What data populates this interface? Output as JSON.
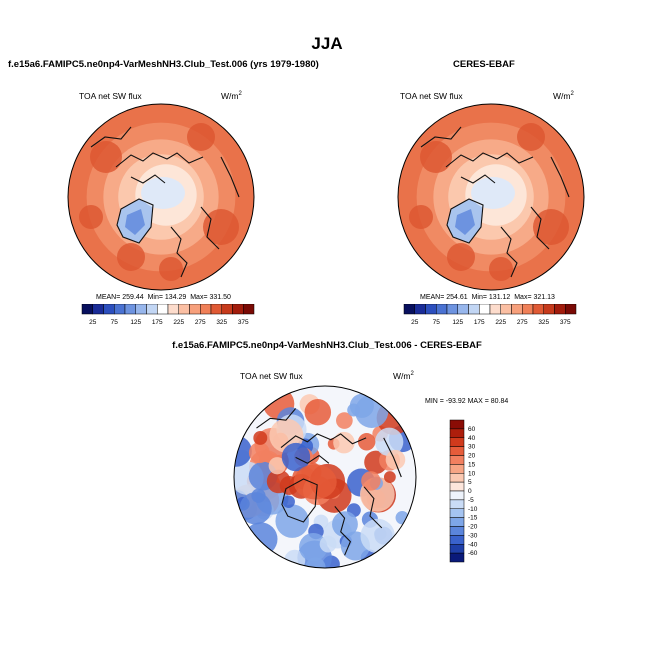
{
  "season_title": "JJA",
  "panels": {
    "model": {
      "title": "f.e15a6.FAMIPC5.ne0np4-VarMeshNH3.Club_Test.006 (yrs 1979-1980)",
      "var_label": "TOA net SW flux",
      "units_label": "W/m",
      "units_power": "2",
      "stats": {
        "mean_label": "MEAN=",
        "mean": "259.44",
        "min_label": "Min=",
        "min": "134.29",
        "max_label": "Max=",
        "max": "331.50"
      }
    },
    "obs": {
      "title": "CERES-EBAF",
      "var_label": "TOA net SW flux",
      "units_label": "W/m",
      "units_power": "2",
      "stats": {
        "mean_label": "MEAN=",
        "mean": "254.61",
        "min_label": "Min=",
        "min": "131.12",
        "max_label": "Max=",
        "max": "321.13"
      }
    },
    "diff": {
      "title": "f.e15a6.FAMIPC5.ne0np4-VarMeshNH3.Club_Test.006 - CERES-EBAF",
      "var_label": "TOA net SW flux",
      "units_label": "W/m",
      "units_power": "2",
      "range_text": "MIN = -93.92 MAX =  80.84"
    }
  },
  "chart_data": [
    {
      "type": "heatmap",
      "projection": "north-polar-stereographic",
      "title": "f.e15a6.FAMIPC5.ne0np4-VarMeshNH3.Club_Test.006 (yrs 1979-1980)",
      "variable": "TOA net SW flux",
      "units": "W/m2",
      "mean": 259.44,
      "min": 134.29,
      "max": 331.5,
      "colorbar_ticks": [
        "25",
        "75",
        "125",
        "175",
        "225",
        "275",
        "325",
        "375"
      ],
      "colorbar_levels": [
        25,
        50,
        75,
        100,
        125,
        150,
        175,
        200,
        225,
        250,
        275,
        300,
        325,
        350,
        375
      ],
      "colorbar_colors": [
        "#08105e",
        "#1a2c98",
        "#2c4fbe",
        "#4a72d2",
        "#6d93e0",
        "#97b6ec",
        "#c2d6f4",
        "#ffffff",
        "#fddccc",
        "#fbbfa3",
        "#f7a07c",
        "#f08058",
        "#e05a35",
        "#c63a1c",
        "#a21c0c",
        "#7a0a05"
      ]
    },
    {
      "type": "heatmap",
      "projection": "north-polar-stereographic",
      "title": "CERES-EBAF",
      "variable": "TOA net SW flux",
      "units": "W/m2",
      "mean": 254.61,
      "min": 131.12,
      "max": 321.13,
      "colorbar_ticks": [
        "25",
        "75",
        "125",
        "175",
        "225",
        "275",
        "325",
        "375"
      ],
      "colorbar_levels": [
        25,
        50,
        75,
        100,
        125,
        150,
        175,
        200,
        225,
        250,
        275,
        300,
        325,
        350,
        375
      ],
      "colorbar_colors": [
        "#08105e",
        "#1a2c98",
        "#2c4fbe",
        "#4a72d2",
        "#6d93e0",
        "#97b6ec",
        "#c2d6f4",
        "#ffffff",
        "#fddccc",
        "#fbbfa3",
        "#f7a07c",
        "#f08058",
        "#e05a35",
        "#c63a1c",
        "#a21c0c",
        "#7a0a05"
      ]
    },
    {
      "type": "heatmap",
      "projection": "north-polar-stereographic",
      "title": "f.e15a6.FAMIPC5.ne0np4-VarMeshNH3.Club_Test.006 - CERES-EBAF",
      "variable": "TOA net SW flux",
      "units": "W/m2",
      "min": -93.92,
      "max": 80.84,
      "colorbar_ticks": [
        "-60",
        "-40",
        "-30",
        "-20",
        "-15",
        "-10",
        "-5",
        "0",
        "5",
        "10",
        "15",
        "20",
        "30",
        "40",
        "60"
      ],
      "colorbar_colors": [
        "#0a1a7a",
        "#1f3fa8",
        "#3a62cc",
        "#5b85dc",
        "#7ea6e8",
        "#a5c4f1",
        "#cadcf6",
        "#eef3fb",
        "#fde6dc",
        "#fbc9b2",
        "#f7a585",
        "#f28060",
        "#e65c3a",
        "#d03a1c",
        "#ad1e0c",
        "#8a0c05"
      ]
    }
  ]
}
